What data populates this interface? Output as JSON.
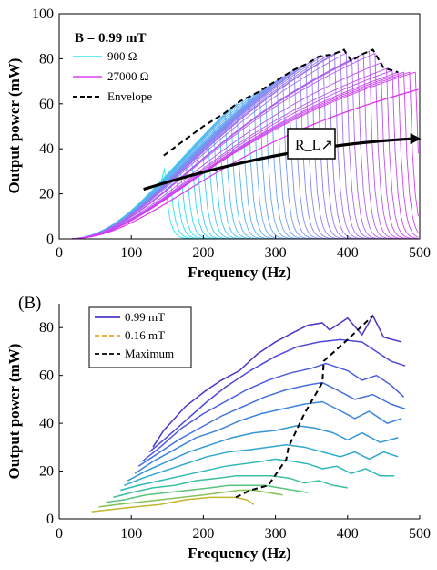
{
  "chart_data": [
    {
      "type": "line",
      "panel": "A",
      "annotation": "B = 0.99 mT",
      "arrow_label": "R_L↗",
      "xlabel": "Frequency (Hz)",
      "ylabel": "Output power (mW)",
      "xlim": [
        0,
        500
      ],
      "ylim": [
        0,
        100
      ],
      "xticks": [
        "0",
        "100",
        "200",
        "300",
        "400",
        "500"
      ],
      "yticks": [
        "0",
        "20",
        "40",
        "60",
        "80",
        "100"
      ],
      "legend_position": "top-left",
      "legend": [
        {
          "label": "900 Ω",
          "color": "#33e6f0",
          "style": "solid"
        },
        {
          "label": "27000 Ω",
          "color": "#e040f0",
          "style": "solid"
        },
        {
          "label": "Envelope",
          "color": "#000000",
          "style": "dashed"
        }
      ],
      "resistance_sweep": {
        "count": 48,
        "color_low_R": "#22e8f2",
        "color_high_R": "#e030f0",
        "peak_frequencies": [
          145,
          152,
          160,
          167,
          175,
          183,
          190,
          198,
          206,
          214,
          222,
          230,
          238,
          246,
          254,
          262,
          270,
          278,
          286,
          294,
          302,
          310,
          318,
          326,
          334,
          342,
          350,
          358,
          366,
          374,
          382,
          390,
          398,
          406,
          414,
          422,
          430,
          438,
          446,
          454,
          462,
          470,
          478,
          486,
          494,
          502,
          510,
          518
        ]
      },
      "envelope": {
        "x": [
          145,
          170,
          200,
          230,
          250,
          275,
          300,
          325,
          345,
          360,
          380,
          395,
          405,
          420,
          435,
          450,
          470
        ],
        "y": [
          37,
          43,
          50,
          56,
          61,
          65,
          70,
          75,
          78,
          81,
          82,
          84,
          79,
          82,
          84,
          76,
          74
        ]
      },
      "arrow": {
        "from": [
          117,
          22
        ],
        "to": [
          497,
          44.5
        ]
      }
    },
    {
      "type": "line",
      "panel": "B",
      "xlabel": "Frequency (Hz)",
      "ylabel": "Output power (mW)",
      "xlim": [
        0,
        500
      ],
      "ylim": [
        0,
        90
      ],
      "xticks": [
        "0",
        "100",
        "200",
        "300",
        "400",
        "500"
      ],
      "yticks": [
        "0",
        "20",
        "40",
        "60",
        "80"
      ],
      "legend_position": "top-left",
      "legend": [
        {
          "label": "0.99 mT",
          "color": "#4838c8",
          "style": "solid"
        },
        {
          "label": "0.16 mT",
          "color": "#e8a030",
          "style": "dashed"
        },
        {
          "label": "Maximum",
          "color": "#000000",
          "style": "dashed"
        }
      ],
      "series": [
        {
          "name": "0.99 mT",
          "color": "#4a35c8",
          "x": [
            130,
            145,
            175,
            205,
            225,
            250,
            275,
            300,
            325,
            345,
            365,
            375,
            400,
            420,
            435,
            450,
            475
          ],
          "y": [
            30,
            37,
            47,
            54,
            58,
            62,
            69,
            74,
            78,
            81,
            82,
            79,
            84,
            77,
            85,
            76,
            74
          ]
        },
        {
          "color": "#4e48d8",
          "x": [
            125,
            145,
            175,
            205,
            230,
            265,
            300,
            330,
            360,
            390,
            420,
            440,
            460,
            480
          ],
          "y": [
            28,
            33,
            41,
            49,
            55,
            62,
            68,
            72,
            74,
            75,
            74,
            70,
            66,
            64
          ]
        },
        {
          "color": "#4c5ce0",
          "x": [
            115,
            140,
            170,
            200,
            230,
            260,
            290,
            320,
            350,
            370,
            400,
            420,
            440,
            460,
            478
          ],
          "y": [
            24,
            30,
            38,
            44,
            49,
            54,
            58,
            61,
            63,
            65,
            62,
            58,
            60,
            56,
            51
          ]
        },
        {
          "color": "#4570dc",
          "x": [
            110,
            135,
            165,
            195,
            225,
            255,
            285,
            315,
            345,
            365,
            385,
            410,
            435,
            460,
            480
          ],
          "y": [
            22,
            27,
            33,
            38,
            43,
            47,
            51,
            54,
            56,
            57,
            54,
            50,
            52,
            48,
            46
          ]
        },
        {
          "color": "#3e84dc",
          "x": [
            105,
            130,
            160,
            190,
            220,
            250,
            280,
            310,
            340,
            365,
            385,
            410,
            430,
            455,
            475
          ],
          "y": [
            19,
            24,
            29,
            34,
            37,
            41,
            44,
            46,
            48,
            49,
            46,
            42,
            45,
            40,
            42
          ]
        },
        {
          "color": "#3596d6",
          "x": [
            95,
            120,
            150,
            180,
            210,
            240,
            270,
            300,
            330,
            355,
            380,
            400,
            420,
            445,
            470
          ],
          "y": [
            16,
            20,
            24,
            28,
            31,
            34,
            36,
            37,
            39,
            38,
            36,
            33,
            36,
            32,
            34
          ]
        },
        {
          "color": "#2ca8cc",
          "x": [
            90,
            115,
            145,
            175,
            205,
            235,
            265,
            290,
            315,
            340,
            365,
            390,
            410,
            430,
            450,
            470
          ],
          "y": [
            14,
            17,
            20,
            23,
            26,
            28,
            29,
            30,
            31,
            30,
            28,
            26,
            28,
            25,
            28,
            26
          ]
        },
        {
          "color": "#2eb8b8",
          "x": [
            85,
            110,
            140,
            170,
            200,
            230,
            255,
            280,
            300,
            325,
            345,
            365,
            385,
            405,
            425,
            445,
            465
          ],
          "y": [
            12,
            14,
            16,
            18,
            20,
            22,
            23,
            24,
            25,
            24,
            23,
            21,
            22,
            19,
            21,
            18,
            18
          ]
        },
        {
          "color": "#3cbf9e",
          "x": [
            75,
            100,
            130,
            160,
            190,
            220,
            245,
            270,
            295,
            320,
            340,
            360,
            380,
            400
          ],
          "y": [
            9,
            11,
            13,
            14,
            16,
            17,
            18,
            18,
            18,
            17,
            15,
            16,
            14,
            13
          ]
        },
        {
          "color": "#58c47c",
          "x": [
            65,
            90,
            120,
            150,
            180,
            210,
            235,
            260,
            285,
            305,
            325,
            345
          ],
          "y": [
            7,
            8,
            10,
            11,
            12,
            13,
            14,
            14,
            14,
            13,
            12,
            11
          ]
        },
        {
          "color": "#86c254",
          "x": [
            55,
            80,
            110,
            140,
            170,
            200,
            225,
            250,
            270,
            290,
            310
          ],
          "y": [
            5,
            6,
            7,
            8,
            9,
            10,
            11,
            12,
            12,
            11,
            10
          ]
        },
        {
          "name": "0.16 mT",
          "color": "#c2b42c",
          "x": [
            45,
            75,
            105,
            140,
            175,
            210,
            245,
            260,
            270
          ],
          "y": [
            3,
            4,
            5,
            6,
            8,
            9,
            9,
            8,
            6
          ]
        }
      ],
      "maximum": {
        "x": [
          245,
          265,
          290,
          315,
          318,
          340,
          365,
          367,
          400,
          435
        ],
        "y": [
          9,
          12,
          14,
          25,
          30,
          44,
          57,
          66,
          75,
          85
        ]
      }
    }
  ],
  "panel_labels": {
    "b": "(B)"
  }
}
